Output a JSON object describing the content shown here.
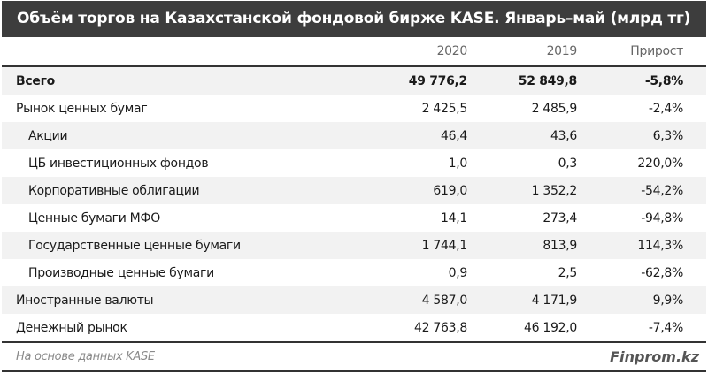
{
  "title": "Объём торгов на Казахстанской фондовой бирже KASE. Январь–май (млрд тг)",
  "table": {
    "columns": [
      "",
      "2020",
      "2019",
      "Прирост"
    ],
    "rows": [
      {
        "label": "Всего",
        "v2020": "49 776,2",
        "v2019": "52 849,8",
        "growth": "-5,8%"
      },
      {
        "label": "Рынок ценных бумаг",
        "v2020": "2 425,5",
        "v2019": "2 485,9",
        "growth": "-2,4%"
      },
      {
        "label": "Акции",
        "v2020": "46,4",
        "v2019": "43,6",
        "growth": "6,3%"
      },
      {
        "label": "ЦБ инвестиционных фондов",
        "v2020": "1,0",
        "v2019": "0,3",
        "growth": "220,0%"
      },
      {
        "label": "Корпоративные облигации",
        "v2020": "619,0",
        "v2019": "1 352,2",
        "growth": "-54,2%"
      },
      {
        "label": "Ценные бумаги МФО",
        "v2020": "14,1",
        "v2019": "273,4",
        "growth": "-94,8%"
      },
      {
        "label": "Государственные ценные бумаги",
        "v2020": "1 744,1",
        "v2019": "813,9",
        "growth": "114,3%"
      },
      {
        "label": "Производные ценные бумаги",
        "v2020": "0,9",
        "v2019": "2,5",
        "growth": "-62,8%"
      },
      {
        "label": "Иностранные валюты",
        "v2020": "4 587,0",
        "v2019": "4 171,9",
        "growth": "9,9%"
      },
      {
        "label": "Денежный рынок",
        "v2020": "42 763,8",
        "v2019": "46 192,0",
        "growth": "-7,4%"
      }
    ]
  },
  "footer": {
    "source": "На основе данных KASE",
    "brand": "Finprom.kz"
  },
  "colors": {
    "title_bg": "#3d3d3d",
    "title_text": "#ffffff",
    "row_shade": "#f2f2f2",
    "rule": "#333333"
  }
}
